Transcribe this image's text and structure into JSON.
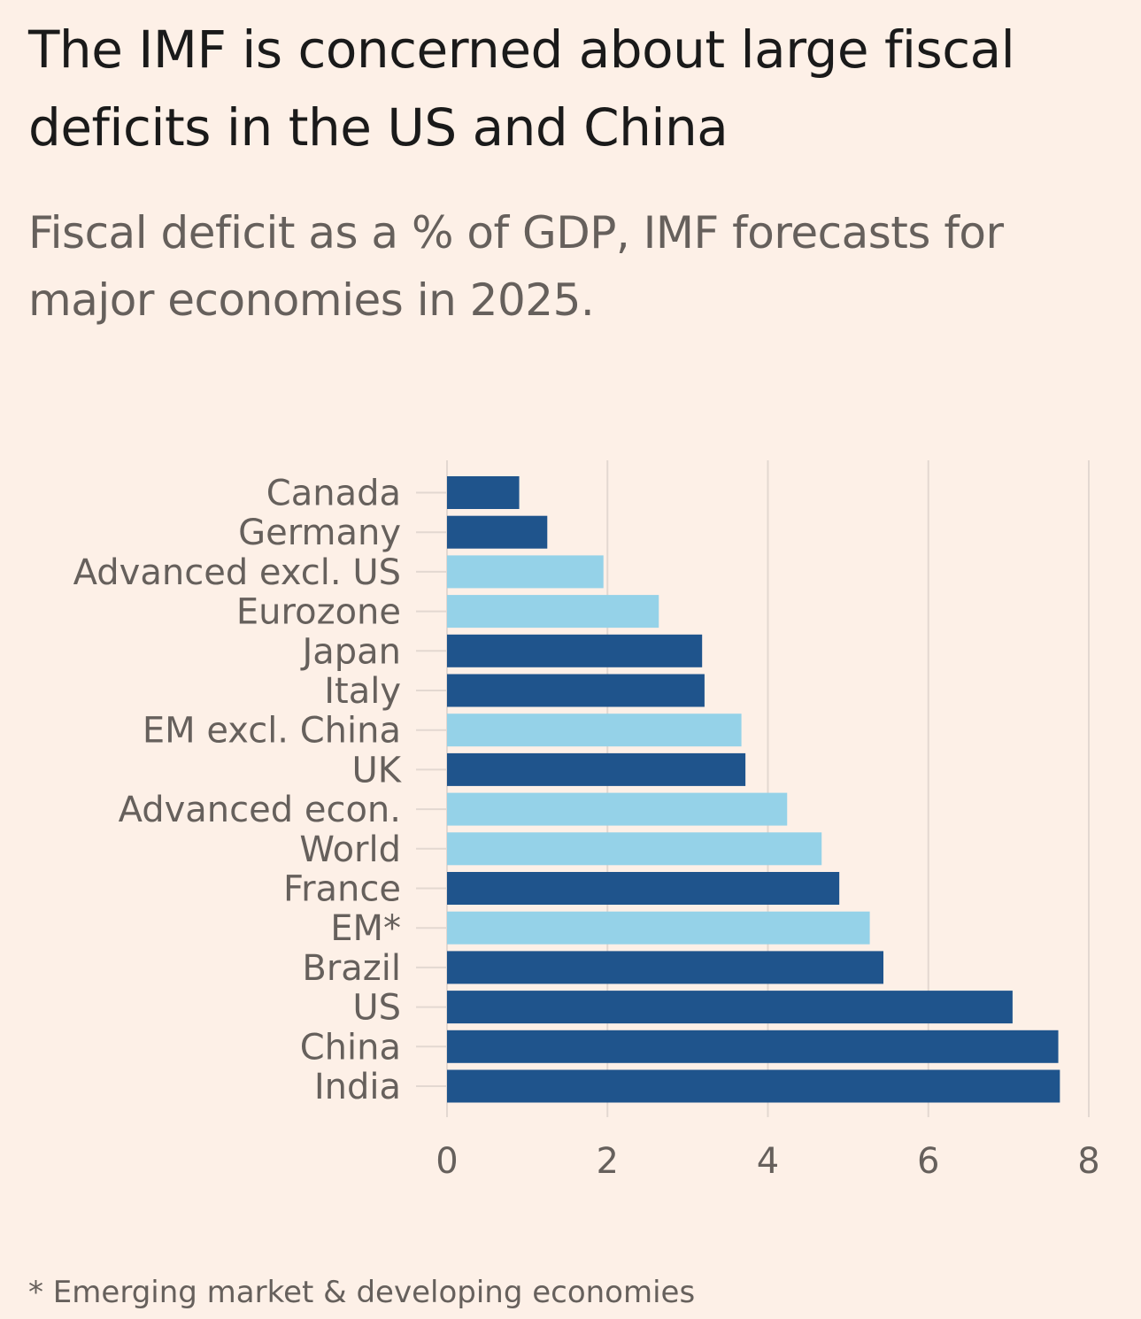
{
  "header": {
    "title": "The IMF is concerned about large fiscal deficits in the US and China",
    "subtitle": "Fiscal deficit as a % of GDP, IMF forecasts for major economies in 2025."
  },
  "footnote": "* Emerging market & developing economies",
  "colors": {
    "background": "#fdf0e7",
    "country": "#1f548c",
    "aggregate": "#95d2e8",
    "grid": "#e3d8d1",
    "text": "#66605c"
  },
  "chart_data": {
    "type": "bar",
    "orientation": "horizontal",
    "title": "The IMF is concerned about large fiscal deficits in the US and China",
    "subtitle": "Fiscal deficit as a % of GDP, IMF forecasts for major economies in 2025.",
    "xlabel": "",
    "ylabel": "",
    "xlim": [
      0,
      8
    ],
    "xticks": [
      "0",
      "2",
      "4",
      "6",
      "8"
    ],
    "grid": true,
    "categories": [
      "Canada",
      "Germany",
      "Advanced excl. US",
      "Eurozone",
      "Japan",
      "Italy",
      "EM excl. China",
      "UK",
      "Advanced econ.",
      "World",
      "France",
      "EM*",
      "Brazil",
      "US",
      "China",
      "India"
    ],
    "values": [
      0.9,
      1.25,
      1.95,
      2.64,
      3.18,
      3.21,
      3.67,
      3.72,
      4.24,
      4.67,
      4.89,
      5.27,
      5.44,
      7.05,
      7.62,
      7.64
    ],
    "group": [
      "country",
      "country",
      "aggregate",
      "aggregate",
      "country",
      "country",
      "aggregate",
      "country",
      "aggregate",
      "aggregate",
      "country",
      "aggregate",
      "country",
      "country",
      "country",
      "country"
    ]
  }
}
